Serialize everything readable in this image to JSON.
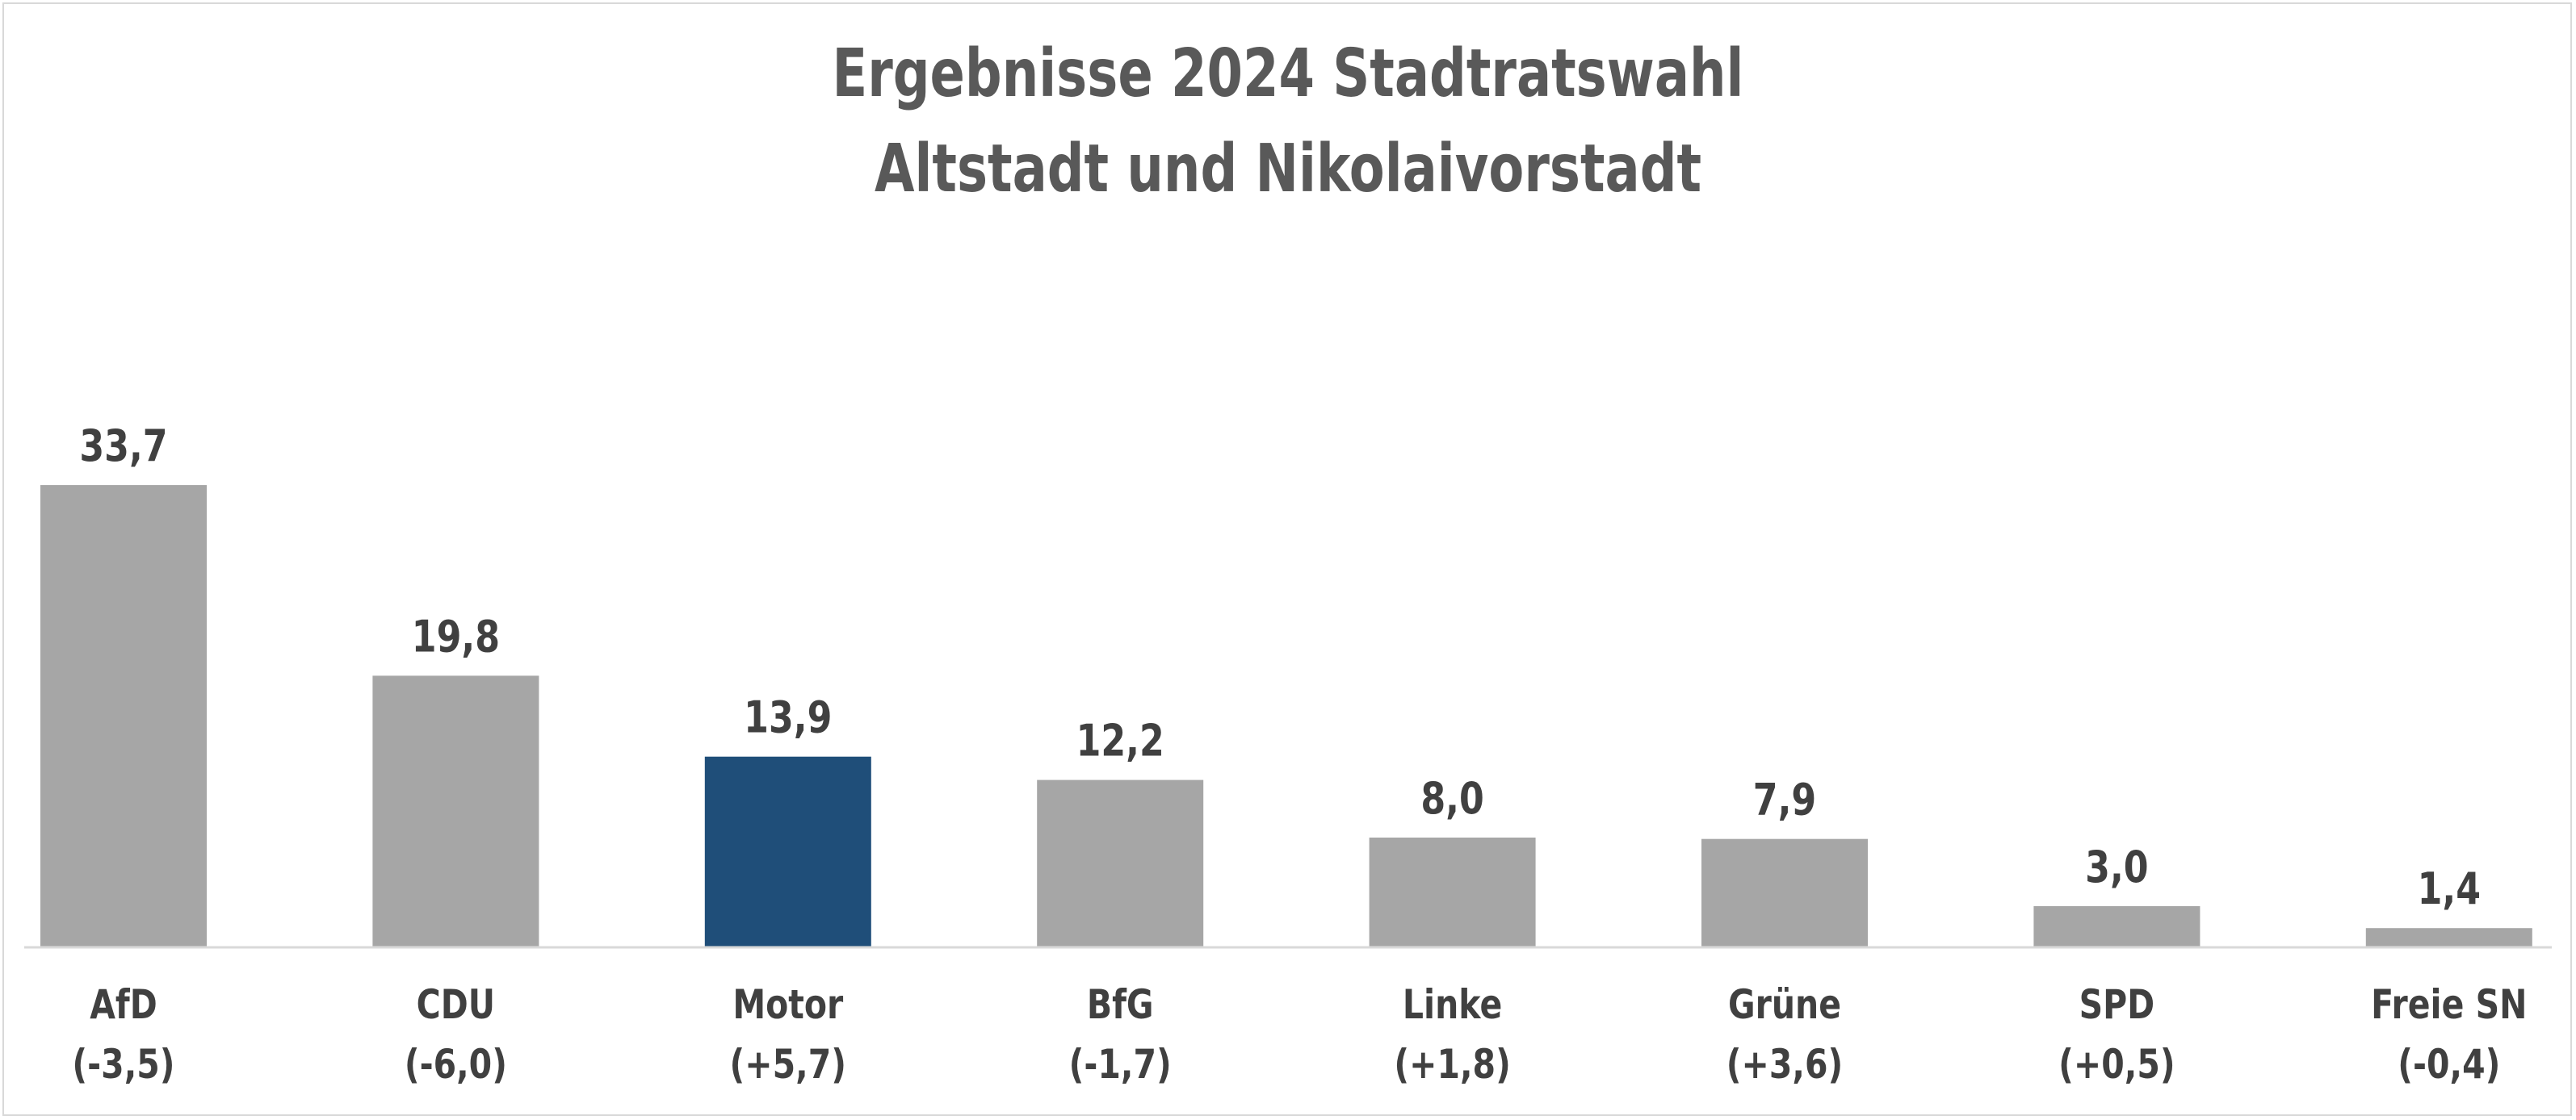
{
  "chart_data": {
    "type": "bar",
    "title_lines": [
      "Ergebnisse 2024 Stadtratswahl",
      "Altstadt und Nikolaivorstadt"
    ],
    "categories": [
      "AfD",
      "CDU",
      "Motor",
      "BfG",
      "Linke",
      "Grüne",
      "SPD",
      "Freie SN"
    ],
    "changes": [
      "(-3,5)",
      "(-6,0)",
      "(+5,7)",
      "(-1,7)",
      "(+1,8)",
      "(+3,6)",
      "(+0,5)",
      "(-0,4)"
    ],
    "values": [
      33.7,
      19.8,
      13.9,
      12.2,
      8.0,
      7.9,
      3.0,
      1.4
    ],
    "value_labels": [
      "33,7",
      "19,8",
      "13,9",
      "12,2",
      "8,0",
      "7,9",
      "3,0",
      "1,4"
    ],
    "highlight_category": "Motor",
    "colors": {
      "default_bar": "#a6a6a6",
      "highlight_bar": "#1f4e79",
      "baseline": "#d9d9d9",
      "text": "#404040",
      "title": "#595959"
    },
    "grid": false,
    "legend": "none"
  }
}
